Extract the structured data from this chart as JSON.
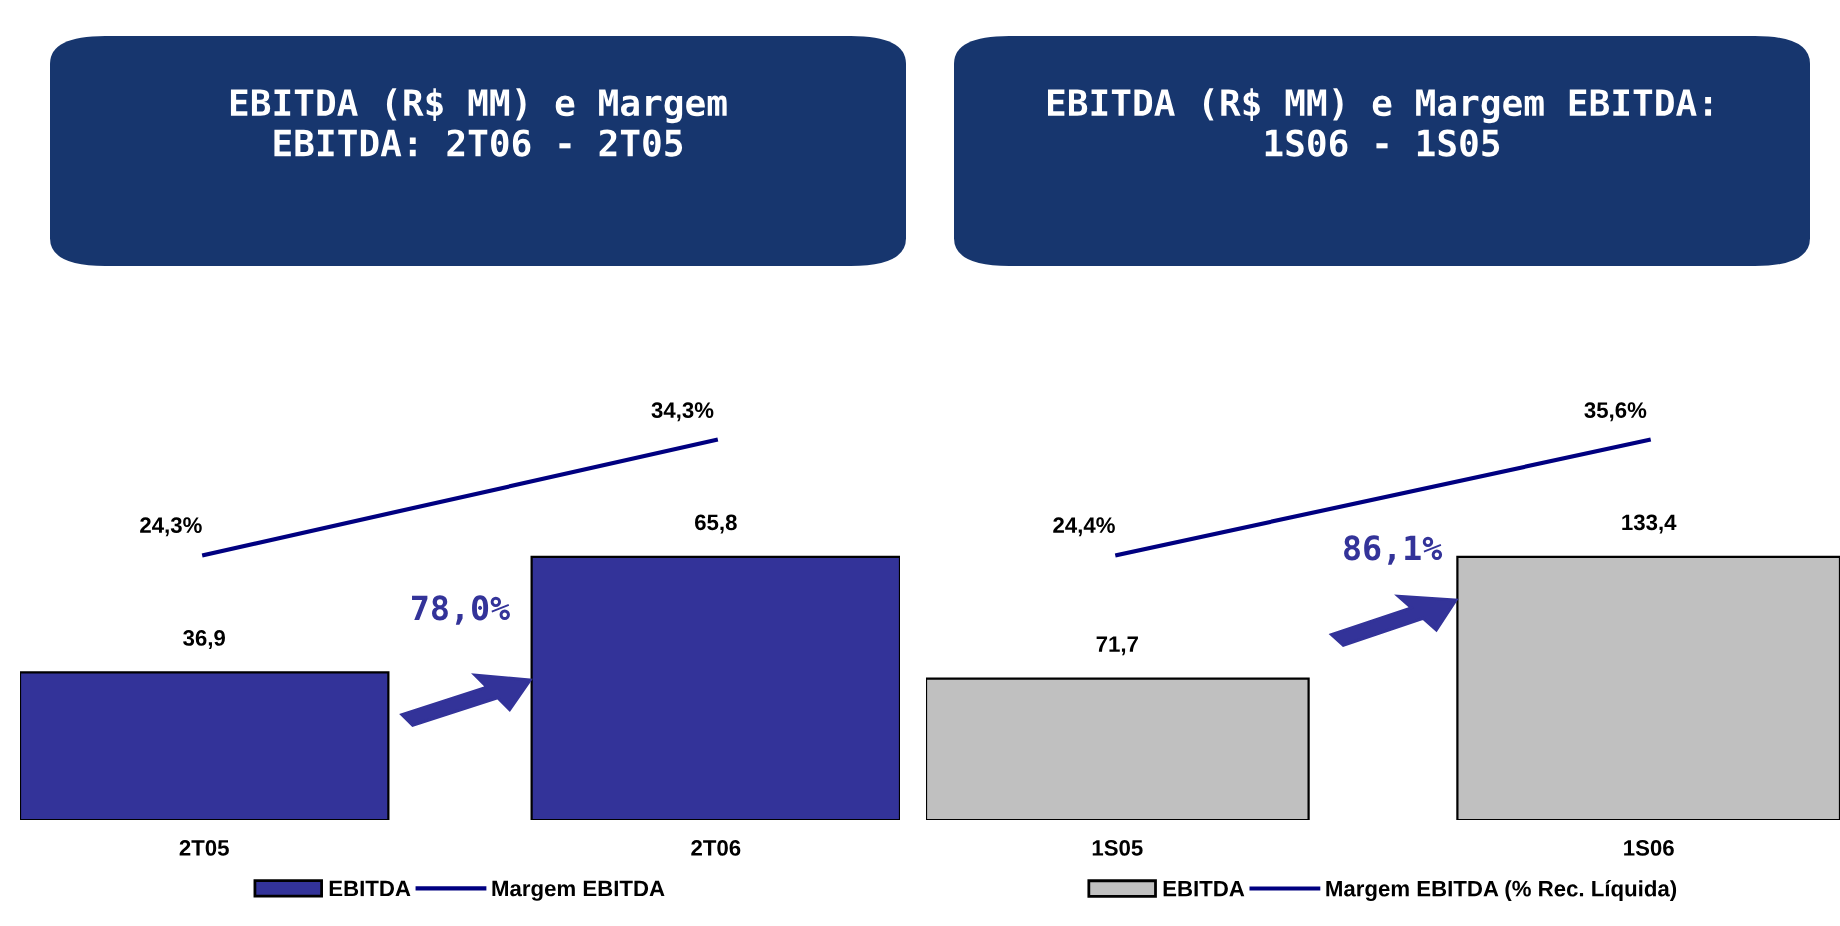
{
  "chart_data": [
    {
      "type": "bar",
      "title": "EBITDA (R$ MM) e Margem\nEBITDA: 2T06 - 2T05",
      "categories": [
        "2T05",
        "2T06"
      ],
      "series": [
        {
          "name": "EBITDA",
          "color": "#333399",
          "values": [
            36.9,
            65.8
          ],
          "value_labels": [
            "36,9",
            "65,8"
          ]
        },
        {
          "name": "Margem EBITDA",
          "type": "line",
          "axis": "y2",
          "color": "#000080",
          "values": [
            24.3,
            34.3
          ],
          "value_labels": [
            "24,3%",
            "34,3%"
          ]
        }
      ],
      "annotations": [
        "78,0%"
      ],
      "legend": "bottom",
      "marker": "none",
      "line_style": "solid",
      "grid": false
    },
    {
      "type": "bar",
      "title": "EBITDA (R$ MM) e Margem EBITDA:\n1S06 - 1S05",
      "categories": [
        "1S05",
        "1S06"
      ],
      "series": [
        {
          "name": "EBITDA",
          "color": "#c0c0c0",
          "values": [
            71.7,
            133.4
          ],
          "value_labels": [
            "71,7",
            "133,4"
          ]
        },
        {
          "name": "Margem EBITDA (% Rec. Líquida)",
          "type": "line",
          "axis": "y2",
          "color": "#000080",
          "values": [
            24.4,
            35.6
          ],
          "value_labels": [
            "24,4%",
            "35,6%"
          ]
        }
      ],
      "annotations": [
        "86,1%"
      ],
      "legend": "bottom",
      "marker": "none",
      "line_style": "solid",
      "grid": false
    }
  ]
}
